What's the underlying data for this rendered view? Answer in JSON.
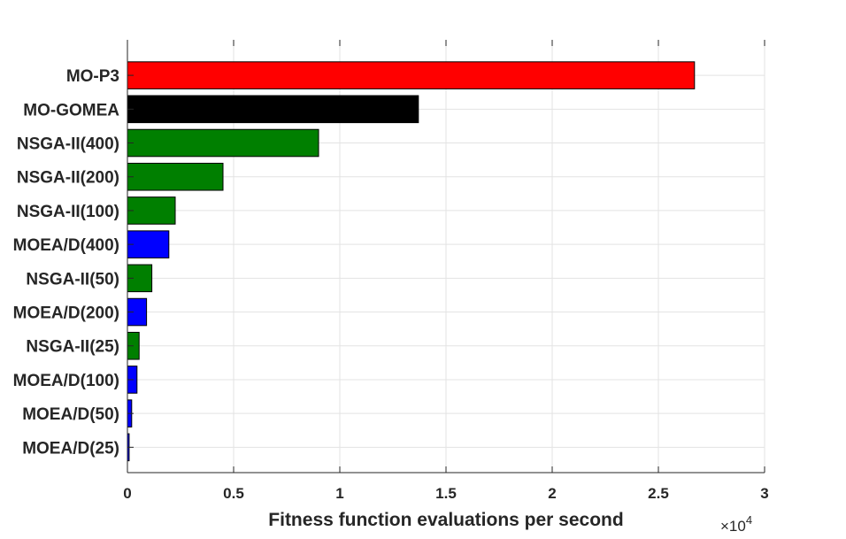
{
  "chart_data": {
    "type": "bar",
    "orientation": "horizontal",
    "title": "",
    "xlabel": "Fitness function evaluations per second",
    "ylabel": "",
    "x_exponent_label": {
      "base": "×10",
      "power": "4"
    },
    "xlim": [
      0,
      3
    ],
    "xticks": [
      "0",
      "0.5",
      "1",
      "1.5",
      "2",
      "2.5",
      "3"
    ],
    "grid": true,
    "legend": "none",
    "categories": [
      "MO-P3",
      "MO-GOMEA",
      "NSGA-II(400)",
      "NSGA-II(200)",
      "NSGA-II(100)",
      "MOEA/D(400)",
      "NSGA-II(50)",
      "MOEA/D(200)",
      "NSGA-II(25)",
      "MOEA/D(100)",
      "MOEA/D(50)",
      "MOEA/D(25)"
    ],
    "values": [
      2.67,
      1.37,
      0.9,
      0.45,
      0.225,
      0.195,
      0.115,
      0.09,
      0.055,
      0.045,
      0.02,
      0.008
    ],
    "colors": [
      "#ff0000",
      "#000000",
      "#007f00",
      "#007f00",
      "#007f00",
      "#0000ff",
      "#007f00",
      "#0000ff",
      "#007f00",
      "#0000ff",
      "#0000ff",
      "#0000ff"
    ],
    "grid_color": "#e3e3e3",
    "axis_color": "#262626"
  }
}
